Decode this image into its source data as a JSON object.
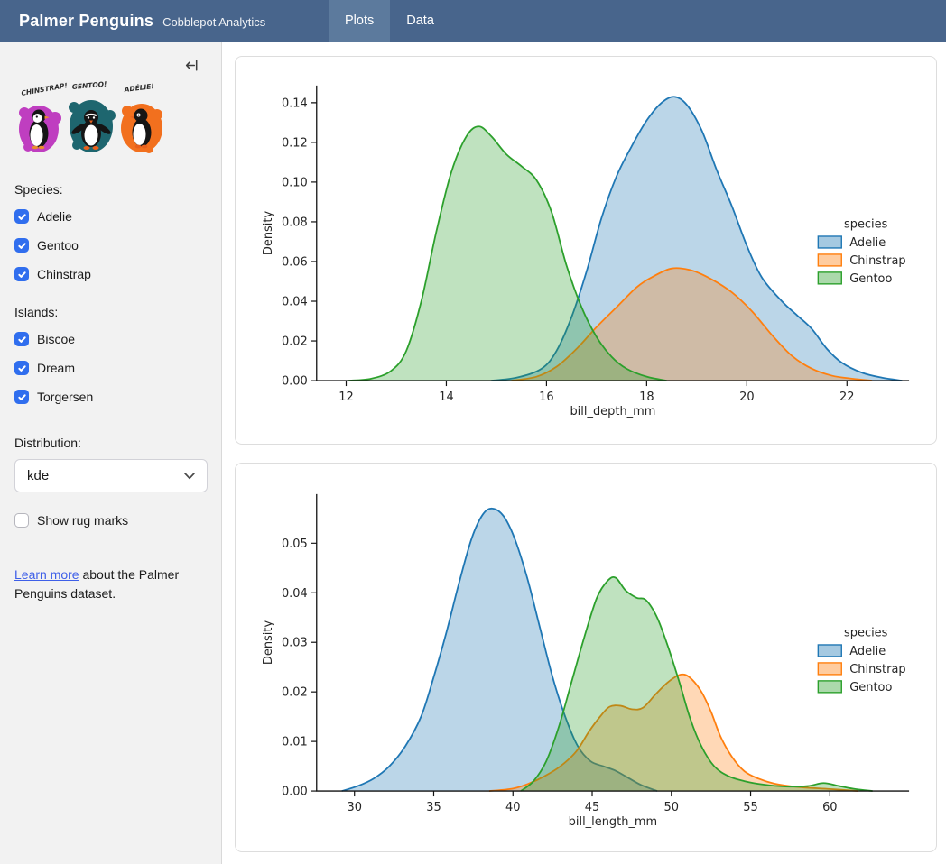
{
  "theme": {
    "navbar_bg": "#48658c",
    "navbar_active": "#5c7a9d",
    "sidebar_bg": "#f2f2f2",
    "checkbox": "#306eee",
    "link": "#3e5fe8",
    "card_border": "#dddddd",
    "text": "#1b1b1b"
  },
  "navbar": {
    "title": "Palmer Penguins",
    "subtitle": "Cobblepot Analytics",
    "tabs": [
      {
        "label": "Plots",
        "active": true
      },
      {
        "label": "Data",
        "active": false
      }
    ]
  },
  "sidebar": {
    "artwork": {
      "labels": [
        "CHINSTRAP!",
        "GENTOO!",
        "ADÉLIE!"
      ],
      "colors": [
        "#bf3ec0",
        "#1e666f",
        "#f2701e"
      ]
    },
    "species": {
      "label": "Species:",
      "options": [
        {
          "label": "Adelie",
          "checked": true
        },
        {
          "label": "Gentoo",
          "checked": true
        },
        {
          "label": "Chinstrap",
          "checked": true
        }
      ]
    },
    "islands": {
      "label": "Islands:",
      "options": [
        {
          "label": "Biscoe",
          "checked": true
        },
        {
          "label": "Dream",
          "checked": true
        },
        {
          "label": "Torgersen",
          "checked": true
        }
      ]
    },
    "distribution": {
      "label": "Distribution:",
      "value": "kde"
    },
    "rug": {
      "label": "Show rug marks",
      "checked": false
    },
    "learn_more": {
      "link_text": "Learn more",
      "text_after": " about the Palmer Penguins dataset."
    }
  },
  "chart_data": [
    {
      "type": "area",
      "kind": "kde",
      "xlabel": "bill_depth_mm",
      "ylabel": "Density",
      "xlim": [
        11.41,
        23.24
      ],
      "ylim": [
        0,
        0.1486
      ],
      "xticks": [
        12,
        14,
        16,
        18,
        20,
        22
      ],
      "yticks": [
        0,
        0.02,
        0.04,
        0.06,
        0.08,
        0.1,
        0.12,
        0.14
      ],
      "y_decimals": 2,
      "grid": false,
      "legend": {
        "title": "species",
        "position": "right"
      },
      "fill_opacity": 0.3,
      "series": [
        {
          "name": "Adelie",
          "color": "#1f77b4",
          "points": [
            [
              14.9,
              0
            ],
            [
              15.4,
              0.0015
            ],
            [
              15.9,
              0.006
            ],
            [
              16.2,
              0.015
            ],
            [
              16.5,
              0.032
            ],
            [
              16.8,
              0.055
            ],
            [
              17.1,
              0.082
            ],
            [
              17.4,
              0.103
            ],
            [
              17.7,
              0.118
            ],
            [
              18.0,
              0.131
            ],
            [
              18.3,
              0.14
            ],
            [
              18.55,
              0.143
            ],
            [
              18.8,
              0.139
            ],
            [
              19.1,
              0.126
            ],
            [
              19.4,
              0.106
            ],
            [
              19.7,
              0.088
            ],
            [
              20.0,
              0.068
            ],
            [
              20.3,
              0.052
            ],
            [
              20.7,
              0.04
            ],
            [
              21.0,
              0.033
            ],
            [
              21.3,
              0.026
            ],
            [
              21.6,
              0.016
            ],
            [
              21.9,
              0.009
            ],
            [
              22.3,
              0.004
            ],
            [
              22.7,
              0.0015
            ],
            [
              23.1,
              0
            ]
          ]
        },
        {
          "name": "Chinstrap",
          "color": "#ff7f0e",
          "points": [
            [
              15.3,
              0
            ],
            [
              15.8,
              0.002
            ],
            [
              16.2,
              0.007
            ],
            [
              16.6,
              0.016
            ],
            [
              17.0,
              0.027
            ],
            [
              17.4,
              0.037
            ],
            [
              17.8,
              0.047
            ],
            [
              18.1,
              0.052
            ],
            [
              18.5,
              0.0565
            ],
            [
              18.9,
              0.0555
            ],
            [
              19.3,
              0.051
            ],
            [
              19.7,
              0.0445
            ],
            [
              20.1,
              0.035
            ],
            [
              20.5,
              0.023
            ],
            [
              20.9,
              0.0125
            ],
            [
              21.3,
              0.006
            ],
            [
              21.7,
              0.0025
            ],
            [
              22.1,
              0.001
            ],
            [
              22.5,
              0
            ]
          ]
        },
        {
          "name": "Gentoo",
          "color": "#2ca02c",
          "points": [
            [
              12.05,
              0
            ],
            [
              12.5,
              0.001
            ],
            [
              12.9,
              0.005
            ],
            [
              13.2,
              0.015
            ],
            [
              13.5,
              0.04
            ],
            [
              13.8,
              0.075
            ],
            [
              14.1,
              0.105
            ],
            [
              14.4,
              0.123
            ],
            [
              14.65,
              0.128
            ],
            [
              14.9,
              0.123
            ],
            [
              15.2,
              0.114
            ],
            [
              15.5,
              0.108
            ],
            [
              15.8,
              0.101
            ],
            [
              16.1,
              0.085
            ],
            [
              16.4,
              0.058
            ],
            [
              16.7,
              0.037
            ],
            [
              17.0,
              0.022
            ],
            [
              17.3,
              0.012
            ],
            [
              17.6,
              0.006
            ],
            [
              18.0,
              0.002
            ],
            [
              18.4,
              0
            ]
          ]
        }
      ]
    },
    {
      "type": "area",
      "kind": "kde",
      "xlabel": "bill_length_mm",
      "ylabel": "Density",
      "xlim": [
        27.61,
        65.0
      ],
      "ylim": [
        0,
        0.0599
      ],
      "xticks": [
        30,
        35,
        40,
        45,
        50,
        55,
        60
      ],
      "yticks": [
        0,
        0.01,
        0.02,
        0.03,
        0.04,
        0.05
      ],
      "y_decimals": 2,
      "grid": false,
      "legend": {
        "title": "species",
        "position": "right"
      },
      "fill_opacity": 0.3,
      "series": [
        {
          "name": "Adelie",
          "color": "#1f77b4",
          "points": [
            [
              29.2,
              0
            ],
            [
              30.2,
              0.001
            ],
            [
              31.2,
              0.0025
            ],
            [
              32.2,
              0.005
            ],
            [
              33.2,
              0.009
            ],
            [
              34.2,
              0.015
            ],
            [
              35.0,
              0.023
            ],
            [
              35.8,
              0.032
            ],
            [
              36.6,
              0.042
            ],
            [
              37.4,
              0.051
            ],
            [
              38.1,
              0.0558
            ],
            [
              38.7,
              0.057
            ],
            [
              39.4,
              0.0555
            ],
            [
              40.1,
              0.051
            ],
            [
              40.9,
              0.043
            ],
            [
              41.7,
              0.033
            ],
            [
              42.5,
              0.023
            ],
            [
              43.3,
              0.015
            ],
            [
              44.1,
              0.009
            ],
            [
              44.9,
              0.006
            ],
            [
              45.7,
              0.005
            ],
            [
              46.4,
              0.0042
            ],
            [
              47.2,
              0.0028
            ],
            [
              48.1,
              0.0012
            ],
            [
              49.1,
              0
            ]
          ]
        },
        {
          "name": "Chinstrap",
          "color": "#ff7f0e",
          "points": [
            [
              38.5,
              0
            ],
            [
              40.0,
              0.0005
            ],
            [
              41.0,
              0.0015
            ],
            [
              42.0,
              0.003
            ],
            [
              43.0,
              0.005
            ],
            [
              44.0,
              0.008
            ],
            [
              44.8,
              0.012
            ],
            [
              45.5,
              0.015
            ],
            [
              46.1,
              0.017
            ],
            [
              46.8,
              0.0172
            ],
            [
              47.5,
              0.0165
            ],
            [
              48.2,
              0.0168
            ],
            [
              49.0,
              0.0195
            ],
            [
              49.8,
              0.022
            ],
            [
              50.6,
              0.0235
            ],
            [
              51.2,
              0.0228
            ],
            [
              51.9,
              0.02
            ],
            [
              52.5,
              0.016
            ],
            [
              53.1,
              0.011
            ],
            [
              53.8,
              0.007
            ],
            [
              54.6,
              0.004
            ],
            [
              55.5,
              0.0025
            ],
            [
              56.5,
              0.0015
            ],
            [
              58.0,
              0.0008
            ],
            [
              60.0,
              0.0004
            ],
            [
              61.8,
              0
            ]
          ]
        },
        {
          "name": "Gentoo",
          "color": "#2ca02c",
          "points": [
            [
              40.5,
              0
            ],
            [
              41.3,
              0.002
            ],
            [
              42.1,
              0.006
            ],
            [
              42.9,
              0.013
            ],
            [
              43.7,
              0.022
            ],
            [
              44.5,
              0.031
            ],
            [
              45.3,
              0.039
            ],
            [
              46.0,
              0.0425
            ],
            [
              46.5,
              0.043
            ],
            [
              47.1,
              0.0405
            ],
            [
              47.8,
              0.039
            ],
            [
              48.4,
              0.0385
            ],
            [
              49.1,
              0.035
            ],
            [
              49.8,
              0.029
            ],
            [
              50.5,
              0.022
            ],
            [
              51.2,
              0.0145
            ],
            [
              51.9,
              0.009
            ],
            [
              52.7,
              0.005
            ],
            [
              53.6,
              0.003
            ],
            [
              54.6,
              0.002
            ],
            [
              55.8,
              0.0013
            ],
            [
              57.2,
              0.0009
            ],
            [
              58.6,
              0.001
            ],
            [
              59.6,
              0.0016
            ],
            [
              60.6,
              0.001
            ],
            [
              61.6,
              0.0004
            ],
            [
              62.7,
              0
            ]
          ]
        }
      ]
    }
  ]
}
